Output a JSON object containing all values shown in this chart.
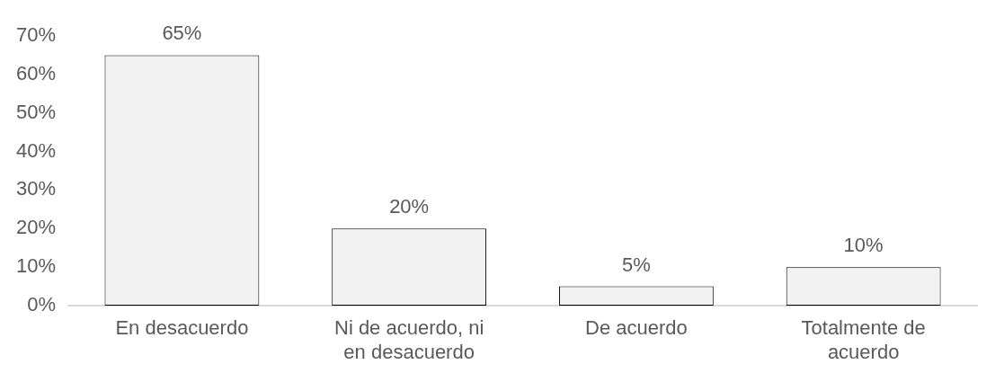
{
  "chart_data": {
    "type": "bar",
    "categories": [
      "En desacuerdo",
      "Ni de acuerdo, ni en desacuerdo",
      "De acuerdo",
      "Totalmente de acuerdo"
    ],
    "values": [
      65,
      20,
      5,
      10
    ],
    "value_labels": [
      "65%",
      "20%",
      "5%",
      "10%"
    ],
    "color": "#f2f2f2",
    "ylim": [
      0,
      70
    ],
    "yticks": [
      {
        "value": 0,
        "label": "0%"
      },
      {
        "value": 10,
        "label": "10%"
      },
      {
        "value": 20,
        "label": "20%"
      },
      {
        "value": 30,
        "label": "30%"
      },
      {
        "value": 40,
        "label": "40%"
      },
      {
        "value": 50,
        "label": "50%"
      },
      {
        "value": 60,
        "label": "60%"
      },
      {
        "value": 70,
        "label": "70%"
      }
    ],
    "grid": false,
    "legend": false
  }
}
